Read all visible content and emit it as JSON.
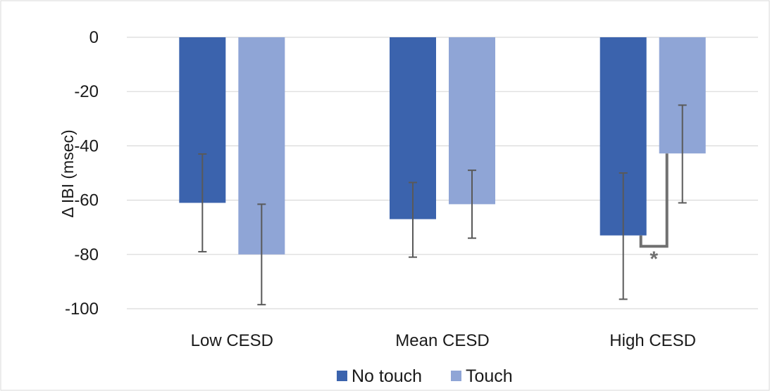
{
  "chart_data": {
    "type": "bar",
    "title": "",
    "xlabel": "",
    "ylabel": "Δ IBI (msec)",
    "ylim": [
      -100,
      0
    ],
    "yticks": [
      0,
      -20,
      -40,
      -60,
      -80,
      -100
    ],
    "grid": true,
    "legend_position": "bottom",
    "categories": [
      "Low CESD",
      "Mean CESD",
      "High CESD"
    ],
    "series": [
      {
        "name": "No touch",
        "color": "#3b63ad",
        "values": [
          -61,
          -67,
          -73
        ],
        "error_low": [
          -79,
          -81,
          -96.5
        ],
        "error_high": [
          -43,
          -53.5,
          -50
        ]
      },
      {
        "name": "Touch",
        "color": "#8fa5d6",
        "values": [
          -80,
          -61.5,
          -42.8
        ],
        "error_low": [
          -98.5,
          -74,
          -61
        ],
        "error_high": [
          -61.5,
          -49,
          -25
        ]
      }
    ],
    "annotations": [
      {
        "category": "High CESD",
        "text": "*",
        "bracket_y": -77
      }
    ]
  }
}
